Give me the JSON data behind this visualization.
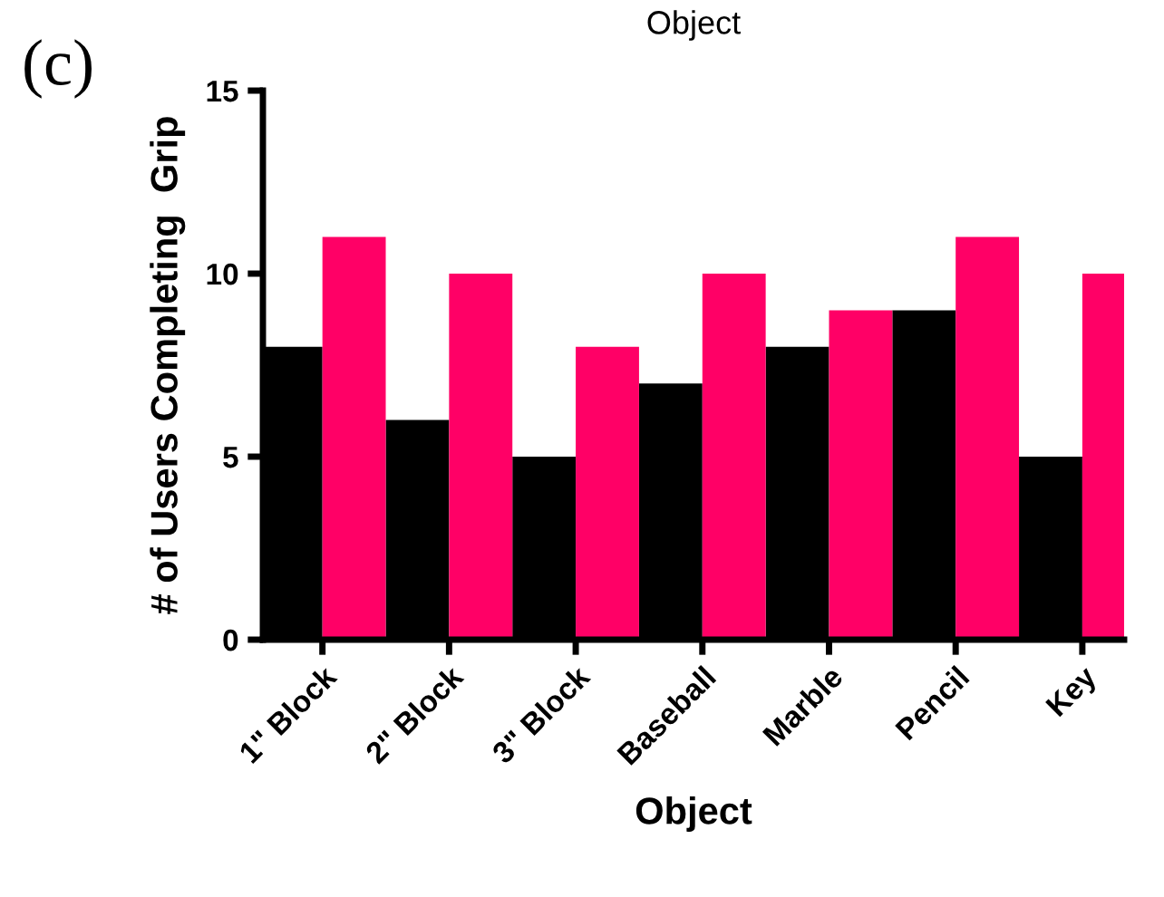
{
  "chart_data": {
    "type": "bar",
    "title": "Object",
    "xlabel": "Object",
    "ylabel": "# of Users Completing  Grip",
    "annotations": [
      "(c)"
    ],
    "categories": [
      "1\" Block",
      "2\" Block",
      "3\" Block",
      "Baseball",
      "Marble",
      "Pencil",
      "Key"
    ],
    "series": [
      {
        "color": "#000000",
        "values": [
          8,
          6,
          5,
          7,
          8,
          9,
          5
        ]
      },
      {
        "color": "#ff0066",
        "values": [
          11,
          10,
          8,
          10,
          9,
          11,
          10
        ]
      }
    ],
    "ylim": [
      0,
      15
    ],
    "yticks": [
      0,
      5,
      10,
      15
    ],
    "grid": false,
    "legend": false
  }
}
